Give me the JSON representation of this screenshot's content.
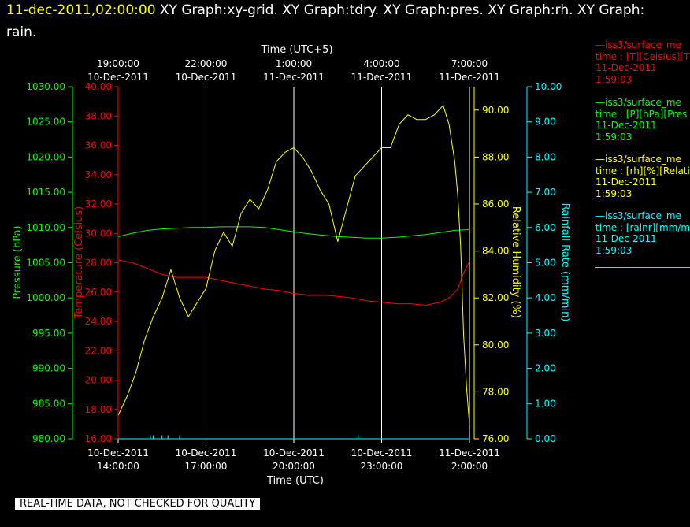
{
  "header": {
    "timestamp": "11-dec-2011,02:00:00",
    "graphs_line1": " XY Graph:xy-grid.  XY Graph:tdry.  XY Graph:pres.  XY Graph:rh.  XY Graph:",
    "graphs_line2": "rain."
  },
  "footer": {
    "notice": "REAL-TIME DATA, NOT CHECKED FOR QUALITY"
  },
  "legend": [
    {
      "line1": "—iss3/surface_me",
      "line2": "time : [T][Celsius][T",
      "line3": "11-Dec-2011",
      "line4": "1:59:03",
      "color": "#ff0000"
    },
    {
      "line1": "—iss3/surface_me",
      "line2": "time : [P][hPa][Pres",
      "line3": "11-Dec-2011",
      "line4": "1:59:03",
      "color": "#00ff00"
    },
    {
      "line1": "—iss3/surface_me",
      "line2": "time : [rh][%][Relati",
      "line3": "11-Dec-2011",
      "line4": "1:59:03",
      "color": "#ffff00"
    },
    {
      "line1": "—iss3/surface_me",
      "line2": "time : [rainr][mm/mi",
      "line3": "11-Dec-2011",
      "line4": "1:59:03",
      "color": "#00ffff"
    }
  ],
  "chart_data": {
    "type": "line",
    "top_axis": {
      "title": "Time (UTC+5)",
      "ticks": [
        {
          "time": "19:00:00",
          "date": "10-Dec-2011"
        },
        {
          "time": "22:00:00",
          "date": "10-Dec-2011"
        },
        {
          "time": "1:00:00",
          "date": "11-Dec-2011"
        },
        {
          "time": "4:00:00",
          "date": "11-Dec-2011"
        },
        {
          "time": "7:00:00",
          "date": "11-Dec-2011"
        }
      ]
    },
    "bottom_axis": {
      "title": "Time (UTC)",
      "ticks": [
        {
          "date": "10-Dec-2011",
          "time": "14:00:00"
        },
        {
          "date": "10-Dec-2011",
          "time": "17:00:00"
        },
        {
          "date": "10-Dec-2011",
          "time": "20:00:00"
        },
        {
          "date": "10-Dec-2011",
          "time": "23:00:00"
        },
        {
          "date": "11-Dec-2011",
          "time": "2:00:00"
        }
      ],
      "range_hours_utc": [
        14,
        26
      ]
    },
    "y_axes": {
      "pressure": {
        "label": "Pressure (hPa)",
        "range": [
          980,
          1030
        ],
        "ticks": [
          "980.00",
          "985.00",
          "990.00",
          "995.00",
          "1000.00",
          "1005.00",
          "1010.00",
          "1015.00",
          "1020.00",
          "1025.00",
          "1030.00"
        ],
        "color": "#00ff00"
      },
      "temperature": {
        "label": "Temperature (Celsius)",
        "range": [
          16,
          40
        ],
        "ticks": [
          "16.00",
          "18.00",
          "20.00",
          "22.00",
          "24.00",
          "26.00",
          "28.00",
          "30.00",
          "32.00",
          "34.00",
          "36.00",
          "38.00",
          "40.00"
        ],
        "color": "#ff0000"
      },
      "humidity": {
        "label": "Relative Humidity (%)",
        "range": [
          76,
          91
        ],
        "ticks": [
          "76.00",
          "78.00",
          "80.00",
          "82.00",
          "84.00",
          "86.00",
          "88.00",
          "90.00"
        ],
        "color": "#ffff00"
      },
      "rainfall": {
        "label": "Rainfall Rate (mm/min)",
        "range": [
          0,
          10
        ],
        "ticks": [
          "0.00",
          "1.00",
          "2.00",
          "3.00",
          "4.00",
          "5.00",
          "6.00",
          "7.00",
          "8.00",
          "9.00",
          "10.00"
        ],
        "color": "#00ffff"
      }
    },
    "series": [
      {
        "name": "temperature",
        "axis": "temperature",
        "color": "#ff0000",
        "x": [
          14,
          14.5,
          15,
          15.5,
          16,
          16.5,
          17,
          17.5,
          18,
          18.5,
          19,
          19.5,
          20,
          20.5,
          21,
          21.5,
          22,
          22.5,
          23,
          23.5,
          24,
          24.5,
          25,
          25.3,
          25.6,
          25.8,
          26
        ],
        "y": [
          28.2,
          28.0,
          27.6,
          27.2,
          27.0,
          27.0,
          27.0,
          26.8,
          26.6,
          26.4,
          26.2,
          26.1,
          25.9,
          25.8,
          25.8,
          25.7,
          25.6,
          25.4,
          25.3,
          25.2,
          25.2,
          25.1,
          25.3,
          25.6,
          26.2,
          27.3,
          28.1
        ]
      },
      {
        "name": "pressure",
        "axis": "pressure",
        "color": "#00ff00",
        "x": [
          14,
          14.5,
          15,
          15.5,
          16,
          16.5,
          17,
          17.5,
          18,
          18.5,
          19,
          19.5,
          20,
          20.5,
          21,
          21.5,
          22,
          22.5,
          23,
          23.5,
          24,
          24.5,
          25,
          25.5,
          26
        ],
        "y": [
          1008.7,
          1009.2,
          1009.6,
          1009.8,
          1009.9,
          1010.0,
          1010.0,
          1010.1,
          1010.1,
          1010.1,
          1010.0,
          1009.7,
          1009.4,
          1009.1,
          1008.9,
          1008.7,
          1008.6,
          1008.5,
          1008.5,
          1008.6,
          1008.8,
          1009.0,
          1009.3,
          1009.6,
          1009.7
        ]
      },
      {
        "name": "humidity",
        "axis": "humidity",
        "color": "#ffff00",
        "x": [
          14,
          14.3,
          14.6,
          14.9,
          15.2,
          15.5,
          15.8,
          16.1,
          16.4,
          16.7,
          17,
          17.3,
          17.6,
          17.9,
          18.2,
          18.5,
          18.8,
          19.1,
          19.4,
          19.7,
          20,
          20.3,
          20.6,
          20.9,
          21.2,
          21.5,
          21.8,
          22.1,
          22.4,
          22.7,
          23,
          23.3,
          23.6,
          23.9,
          24.2,
          24.5,
          24.8,
          25.1,
          25.3,
          25.5,
          25.6,
          25.7,
          25.8,
          25.9,
          26
        ],
        "x_note": "hours UTC (24+ = next day)",
        "y": [
          77.0,
          77.8,
          78.8,
          80.2,
          81.2,
          82.0,
          83.2,
          82.0,
          81.2,
          81.8,
          82.4,
          84.0,
          84.8,
          84.2,
          85.6,
          86.2,
          85.8,
          86.6,
          87.8,
          88.2,
          88.4,
          88.0,
          87.4,
          86.6,
          86.0,
          84.4,
          85.8,
          87.2,
          87.6,
          88.0,
          88.4,
          88.4,
          89.4,
          89.8,
          89.6,
          89.6,
          89.8,
          90.2,
          89.4,
          87.8,
          86.4,
          84.2,
          80.4,
          78.2,
          76.6
        ]
      },
      {
        "name": "rainfall",
        "axis": "rainfall",
        "color": "#00ffff",
        "x": [
          14,
          26
        ],
        "y": [
          0,
          0
        ],
        "spikes_x": [
          15.1,
          15.2,
          15.5,
          15.7,
          16.1,
          22.2
        ],
        "spike_value": 0.1
      }
    ],
    "grid": true,
    "grid_x_hours": [
      17,
      20,
      23
    ]
  }
}
